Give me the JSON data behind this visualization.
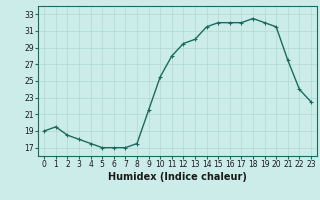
{
  "x": [
    0,
    1,
    2,
    3,
    4,
    5,
    6,
    7,
    8,
    9,
    10,
    11,
    12,
    13,
    14,
    15,
    16,
    17,
    18,
    19,
    20,
    21,
    22,
    23
  ],
  "y": [
    19,
    19.5,
    18.5,
    18,
    17.5,
    17,
    17,
    17,
    17.5,
    21.5,
    25.5,
    28,
    29.5,
    30,
    31.5,
    32,
    32,
    32,
    32.5,
    32,
    31.5,
    27.5,
    24,
    22.5
  ],
  "line_color": "#1a6b5e",
  "marker": "+",
  "marker_color": "#1a6b5e",
  "background_color": "#ccecea",
  "grid_color": "#b0d8d4",
  "xlabel": "Humidex (Indice chaleur)",
  "xlim": [
    -0.5,
    23.5
  ],
  "ylim": [
    16,
    34
  ],
  "yticks": [
    17,
    19,
    21,
    23,
    25,
    27,
    29,
    31,
    33
  ],
  "xticks": [
    0,
    1,
    2,
    3,
    4,
    5,
    6,
    7,
    8,
    9,
    10,
    11,
    12,
    13,
    14,
    15,
    16,
    17,
    18,
    19,
    20,
    21,
    22,
    23
  ],
  "tick_label_fontsize": 5.5,
  "xlabel_fontsize": 7,
  "marker_size": 3,
  "linewidth": 1.0
}
